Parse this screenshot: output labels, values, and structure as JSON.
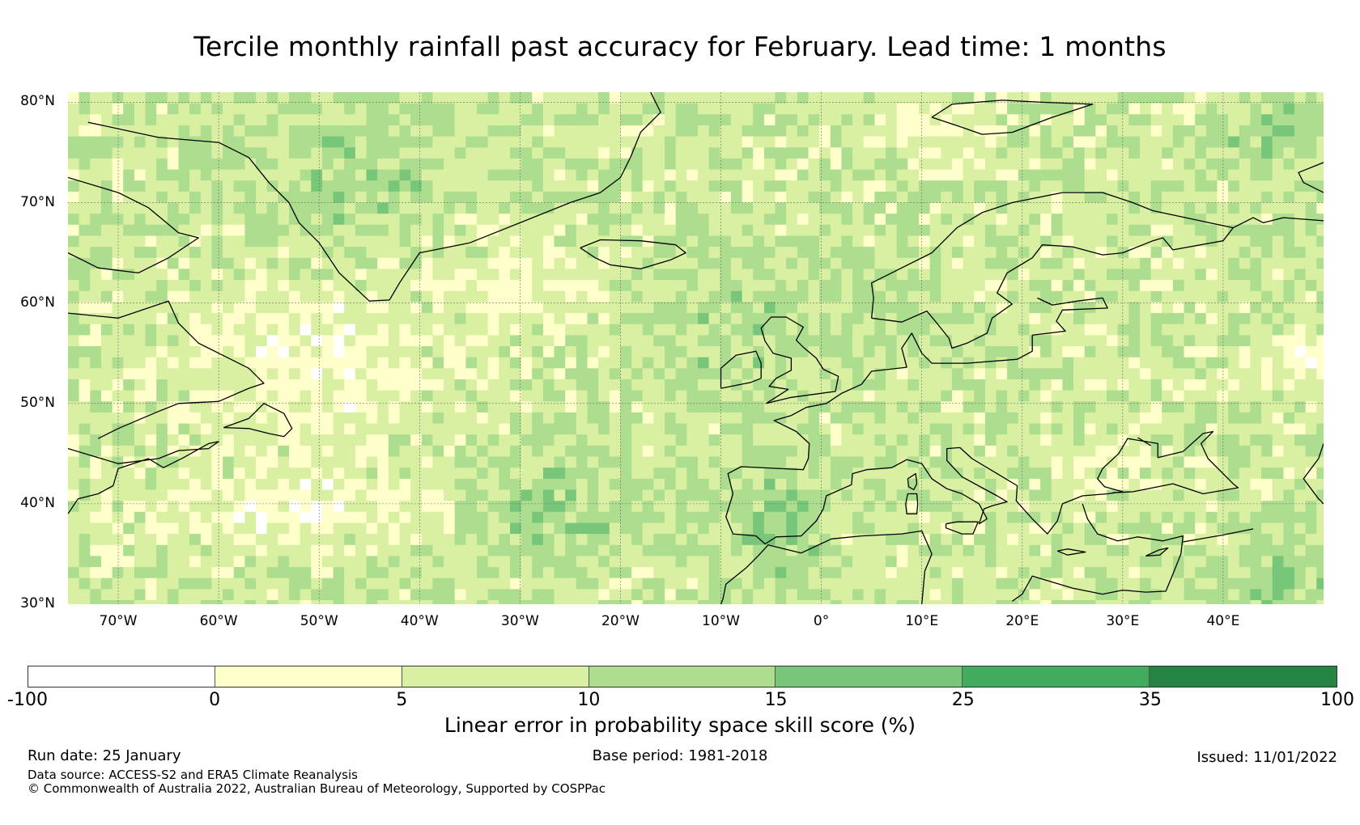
{
  "title": "Tercile monthly rainfall past accuracy for February. Lead time: 1 months",
  "map": {
    "lat_labels": [
      "80°N",
      "70°N",
      "60°N",
      "50°N",
      "40°N",
      "30°N"
    ],
    "lon_labels": [
      "70°W",
      "60°W",
      "50°W",
      "40°W",
      "30°W",
      "20°W",
      "10°W",
      "0°",
      "10°E",
      "20°E",
      "30°E",
      "40°E"
    ],
    "extent": {
      "lon_min": -75,
      "lon_max": 50,
      "lat_min": 30,
      "lat_max": 81
    },
    "colors": [
      "#ffffff",
      "#ffffcc",
      "#d9f0a3",
      "#addd8e",
      "#78c679",
      "#41ab5d",
      "#238443"
    ]
  },
  "colorbar": {
    "label": "Linear error in probability space skill score (%)",
    "ticks": [
      "-100",
      "0",
      "5",
      "10",
      "15",
      "25",
      "35",
      "100"
    ],
    "colors": [
      "#ffffff",
      "#ffffcc",
      "#d9f0a3",
      "#addd8e",
      "#78c679",
      "#41ab5d",
      "#238443"
    ]
  },
  "footer": {
    "run_date": "Run date: 25 January",
    "base_period": "Base period: 1981-2018",
    "issued": "Issued: 11/01/2022",
    "data_source": "Data source: ACCESS-S2 and ERA5 Climate Reanalysis",
    "copyright": "© Commonwealth of Australia 2022, Australian Bureau of Meteorology, Supported by COSPPac"
  }
}
